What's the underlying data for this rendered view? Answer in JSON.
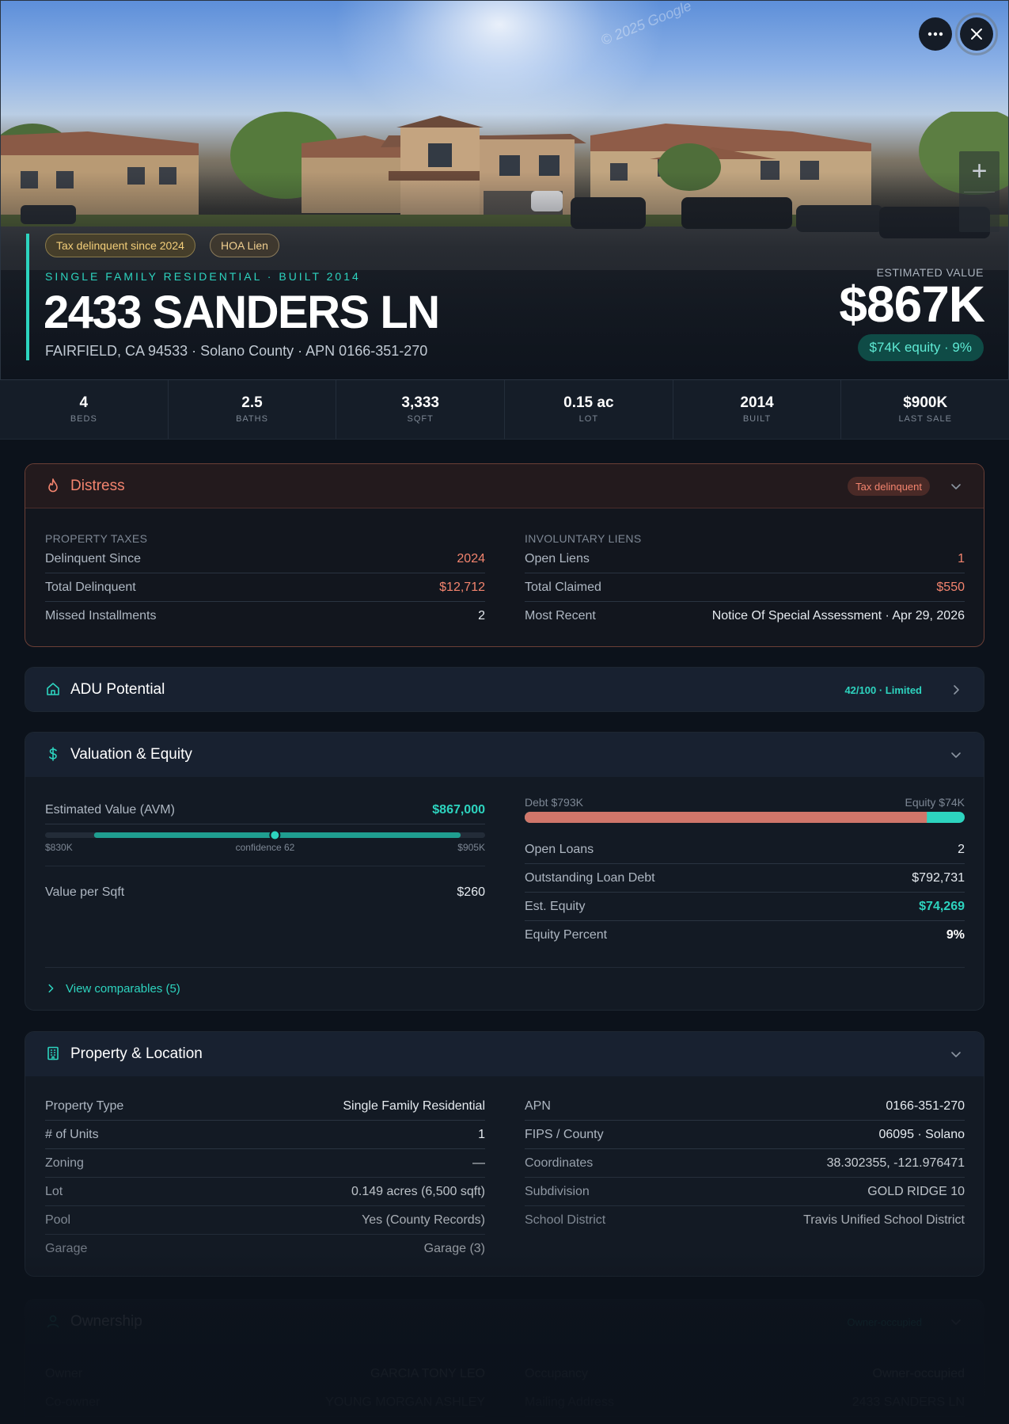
{
  "hero": {
    "watermark": "© 2025 Google",
    "badges": [
      "Tax delinquent since 2024",
      "HOA Lien"
    ],
    "subtype": "SINGLE FAMILY RESIDENTIAL · BUILT 2014",
    "address": "2433 SANDERS LN",
    "address_sub": "FAIRFIELD, CA 94533 · Solano County · APN 0166-351-270",
    "estimated_label": "ESTIMATED VALUE",
    "estimated_value": "$867K",
    "equity_pill": "$74K equity · 9%",
    "zoom_in": "+",
    "icons": {
      "more": "more-horizontal-icon",
      "close": "close-icon"
    }
  },
  "stats": [
    {
      "value": "4",
      "label": "BEDS"
    },
    {
      "value": "2.5",
      "label": "BATHS"
    },
    {
      "value": "3,333",
      "label": "SQFT"
    },
    {
      "value": "0.15 ac",
      "label": "LOT"
    },
    {
      "value": "2014",
      "label": "BUILT"
    },
    {
      "value": "$900K",
      "label": "LAST SALE"
    }
  ],
  "distress": {
    "title": "Distress",
    "badge": "Tax delinquent",
    "taxes_label": "PROPERTY TAXES",
    "taxes": [
      {
        "k": "Delinquent Since",
        "v": "2024"
      },
      {
        "k": "Total Delinquent",
        "v": "$12,712"
      },
      {
        "k": "Missed Installments",
        "v": "2"
      }
    ],
    "liens_label": "INVOLUNTARY LIENS",
    "liens": [
      {
        "k": "Open Liens",
        "v": "1"
      },
      {
        "k": "Total Claimed",
        "v": "$550"
      },
      {
        "k": "Most Recent",
        "v": "Notice Of Special Assessment · Apr 29, 2026"
      }
    ],
    "colors": {
      "alert": "#f3846e",
      "badge_bg": "#4a2a27"
    }
  },
  "adu": {
    "title": "ADU Potential",
    "score": "42/100 · Limited",
    "score_value": 42
  },
  "valuation": {
    "title": "Valuation & Equity",
    "avm_label": "Estimated Value (AVM)",
    "avm_value": "$867,000",
    "range_low": "$830K",
    "range_high": "$905K",
    "confidence": "confidence 62",
    "range_low_num": 830,
    "range_high_num": 905,
    "avm_num": 867,
    "per_sqft_label": "Value per Sqft",
    "per_sqft_value": "$260",
    "debt_label": "Debt $793K",
    "equity_label": "Equity $74K",
    "debt_fraction": 0.914,
    "rows": [
      {
        "k": "Open Loans",
        "v": "2"
      },
      {
        "k": "Outstanding Loan Debt",
        "v": "$792,731"
      },
      {
        "k": "Est. Equity",
        "v": "$74,269"
      },
      {
        "k": "Equity Percent",
        "v": "9%"
      }
    ],
    "comparables": "View comparables (5)"
  },
  "property": {
    "title": "Property & Location",
    "left": [
      {
        "k": "Property Type",
        "v": "Single Family Residential"
      },
      {
        "k": "# of Units",
        "v": "1"
      },
      {
        "k": "Zoning",
        "v": "—"
      },
      {
        "k": "Lot",
        "v": "0.149 acres (6,500 sqft)"
      },
      {
        "k": "Pool",
        "v": "Yes (County Records)"
      },
      {
        "k": "Garage",
        "v": "Garage (3)"
      }
    ],
    "right": [
      {
        "k": "APN",
        "v": "0166-351-270"
      },
      {
        "k": "FIPS / County",
        "v": "06095 · Solano"
      },
      {
        "k": "Coordinates",
        "v": "38.302355, -121.976471"
      },
      {
        "k": "Subdivision",
        "v": "GOLD RIDGE 10"
      },
      {
        "k": "School District",
        "v": "Travis Unified School District"
      }
    ]
  },
  "ownership": {
    "title": "Ownership",
    "badge": "Owner-occupied",
    "left": [
      {
        "k": "Owner",
        "v": "GARCIA TONY LEO"
      },
      {
        "k": "Co-owner",
        "v": "YOUNG MORGAN ASHLEY"
      }
    ],
    "right": [
      {
        "k": "Occupancy",
        "v": "Owner-occupied"
      },
      {
        "k": "Mailing Address",
        "v": "2433 SANDERS LN"
      }
    ]
  },
  "colors": {
    "accent": "#2dd4bf",
    "debt": "#d0766a",
    "background": "#0c121b"
  }
}
